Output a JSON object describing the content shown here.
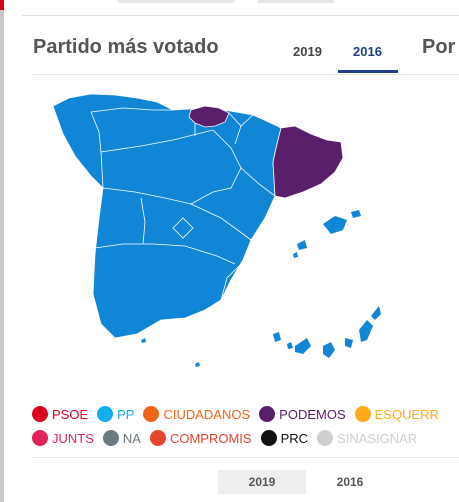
{
  "section": {
    "title": "Partido más votado",
    "next_title": "Por"
  },
  "tabs": [
    {
      "label": "2019",
      "active": false
    },
    {
      "label": "2016",
      "active": true
    }
  ],
  "map": {
    "colors": {
      "pp": "#1185d6",
      "podemos": "#5a1f6b",
      "borders": "#ffffff"
    },
    "regions": [
      {
        "name": "Cataluña",
        "party": "PODEMOS"
      },
      {
        "name": "País Vasco",
        "party": "PODEMOS"
      },
      {
        "name": "Resto de España",
        "party": "PP"
      }
    ]
  },
  "legend": {
    "rows": [
      [
        {
          "label": "PSOE",
          "color": "#d9001b"
        },
        {
          "label": "PP",
          "color": "#12aef0"
        },
        {
          "label": "CIUDADANOS",
          "color": "#f26419"
        },
        {
          "label": "PODEMOS",
          "color": "#5a1f6b"
        },
        {
          "label": "ESQUERR",
          "color": "#ffab19"
        }
      ],
      [
        {
          "label": "JUNTS",
          "color": "#e0235a"
        },
        {
          "label": "NA",
          "color": "#6b7a80"
        },
        {
          "label": "COMPROMIS",
          "color": "#e4452b"
        },
        {
          "label": "PRC",
          "color": "#111111"
        },
        {
          "label": "SINASIGNAR",
          "color": "#cfcfcf"
        }
      ]
    ]
  },
  "bottom_tabs": [
    {
      "label": "2019"
    },
    {
      "label": "2016"
    }
  ]
}
